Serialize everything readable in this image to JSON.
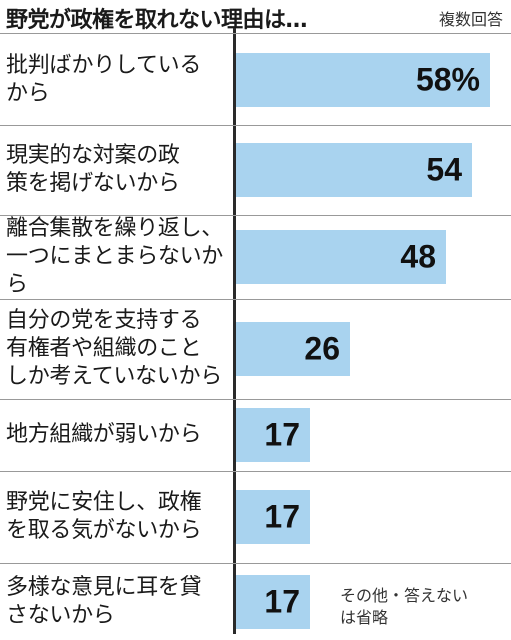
{
  "chart_data": {
    "type": "bar",
    "orientation": "horizontal",
    "title": "野党が政権を取れない理由は…",
    "note": "複数回答",
    "footnote": "その他・答えない\nは省略",
    "categories": [
      "批判ばかりしている\nから",
      "現実的な対案の政\n策を掲げないから",
      "離合集散を繰り返し、\n一つにまとまらないから",
      "自分の党を支持する\n有権者や組織のこと\nしか考えていないから",
      "地方組織が弱いから",
      "野党に安住し、政権\nを取る気がないから",
      "多様な意見に耳を貸\nさないから"
    ],
    "values": [
      58,
      54,
      48,
      26,
      17,
      17,
      17
    ],
    "value_labels": [
      "58%",
      "54",
      "48",
      "26",
      "17",
      "17",
      "17"
    ],
    "xlim": [
      0,
      58
    ],
    "bar_color": "#a9d3ef"
  }
}
